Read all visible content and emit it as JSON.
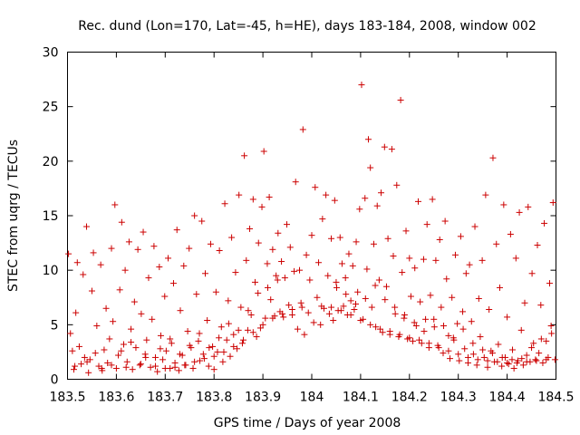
{
  "chart_data": {
    "type": "scatter",
    "title": "Rec. dund (Lon=170, Lat=-45, h=HE), days 183-184, 2008, window 002",
    "xlabel": "GPS time / Days of year 2008",
    "ylabel": "STEC from uqrg / TECUs",
    "xlim": [
      183.5,
      184.5
    ],
    "ylim": [
      0,
      30
    ],
    "xticks": [
      183.5,
      183.6,
      183.7,
      183.8,
      183.9,
      184.0,
      184.1,
      184.2,
      184.3,
      184.4,
      184.5
    ],
    "xtick_labels": [
      "183.5",
      "183.6",
      "183.7",
      "183.8",
      "183.9",
      "184",
      "184.1",
      "184.2",
      "184.3",
      "184.4",
      "184.5"
    ],
    "yticks": [
      0,
      5,
      10,
      15,
      20,
      25,
      30
    ],
    "ytick_labels": [
      "0",
      "5",
      "10",
      "15",
      "20",
      "25",
      "30"
    ],
    "grid": false,
    "legend": "none",
    "marker": "plus",
    "color": "#cc0000",
    "points": [
      [
        183.502,
        11.5
      ],
      [
        183.506,
        4.2
      ],
      [
        183.51,
        2.6
      ],
      [
        183.513,
        0.9
      ],
      [
        183.517,
        6.1
      ],
      [
        183.52,
        10.7
      ],
      [
        183.524,
        3.0
      ],
      [
        183.528,
        1.4
      ],
      [
        183.532,
        9.6
      ],
      [
        183.535,
        2.0
      ],
      [
        183.539,
        14.0
      ],
      [
        183.543,
        0.6
      ],
      [
        183.546,
        1.8
      ],
      [
        183.55,
        8.1
      ],
      [
        183.553,
        11.6
      ],
      [
        183.557,
        2.4
      ],
      [
        183.56,
        4.9
      ],
      [
        183.564,
        1.2
      ],
      [
        183.568,
        10.5
      ],
      [
        183.571,
        0.8
      ],
      [
        183.575,
        2.7
      ],
      [
        183.579,
        6.5
      ],
      [
        183.582,
        1.5
      ],
      [
        183.586,
        3.7
      ],
      [
        183.59,
        12.0
      ],
      [
        183.593,
        5.3
      ],
      [
        183.597,
        16.0
      ],
      [
        183.6,
        1.0
      ],
      [
        183.604,
        2.2
      ],
      [
        183.607,
        8.2
      ],
      [
        183.611,
        14.4
      ],
      [
        183.615,
        3.2
      ],
      [
        183.618,
        10.0
      ],
      [
        183.622,
        1.6
      ],
      [
        183.626,
        12.6
      ],
      [
        183.63,
        4.6
      ],
      [
        183.633,
        0.9
      ],
      [
        183.637,
        7.1
      ],
      [
        183.64,
        2.9
      ],
      [
        183.644,
        11.9
      ],
      [
        183.648,
        1.3
      ],
      [
        183.651,
        6.0
      ],
      [
        183.655,
        13.5
      ],
      [
        183.659,
        2.3
      ],
      [
        183.662,
        3.6
      ],
      [
        183.666,
        9.3
      ],
      [
        183.67,
        1.1
      ],
      [
        183.673,
        5.5
      ],
      [
        183.677,
        12.2
      ],
      [
        183.68,
        2.0
      ],
      [
        183.684,
        0.7
      ],
      [
        183.688,
        10.3
      ],
      [
        183.691,
        4.0
      ],
      [
        183.695,
        1.8
      ],
      [
        183.699,
        7.6
      ],
      [
        183.702,
        2.6
      ],
      [
        183.706,
        11.1
      ],
      [
        183.71,
        1.0
      ],
      [
        183.713,
        3.3
      ],
      [
        183.717,
        8.8
      ],
      [
        183.72,
        1.5
      ],
      [
        183.724,
        13.7
      ],
      [
        183.728,
        0.8
      ],
      [
        183.731,
        6.3
      ],
      [
        183.735,
        2.2
      ],
      [
        183.738,
        10.4
      ],
      [
        183.742,
        1.3
      ],
      [
        183.746,
        4.4
      ],
      [
        183.749,
        12.0
      ],
      [
        183.753,
        2.9
      ],
      [
        183.757,
        1.0
      ],
      [
        183.76,
        15.0
      ],
      [
        183.764,
        7.8
      ],
      [
        183.768,
        3.5
      ],
      [
        183.771,
        1.7
      ],
      [
        183.775,
        14.5
      ],
      [
        183.778,
        2.3
      ],
      [
        183.782,
        9.7
      ],
      [
        183.786,
        5.4
      ],
      [
        183.789,
        1.2
      ],
      [
        183.793,
        12.4
      ],
      [
        183.797,
        3.0
      ],
      [
        183.8,
        0.9
      ],
      [
        183.804,
        8.0
      ],
      [
        183.807,
        2.5
      ],
      [
        183.811,
        11.8
      ],
      [
        183.815,
        4.8
      ],
      [
        183.818,
        1.6
      ],
      [
        183.822,
        16.1
      ],
      [
        183.826,
        3.6
      ],
      [
        183.829,
        7.2
      ],
      [
        183.833,
        2.1
      ],
      [
        183.836,
        13.0
      ],
      [
        183.84,
        4.1
      ],
      [
        183.844,
        9.8
      ],
      [
        183.847,
        2.8
      ],
      [
        183.851,
        16.9
      ],
      [
        183.855,
        6.6
      ],
      [
        183.858,
        3.3
      ],
      [
        183.862,
        20.5
      ],
      [
        183.866,
        10.9
      ],
      [
        183.869,
        4.5
      ],
      [
        183.873,
        13.8
      ],
      [
        183.876,
        5.9
      ],
      [
        183.88,
        16.5
      ],
      [
        183.884,
        8.9
      ],
      [
        183.887,
        3.9
      ],
      [
        183.891,
        12.5
      ],
      [
        183.895,
        4.7
      ],
      [
        183.898,
        15.8
      ],
      [
        183.902,
        20.9
      ],
      [
        183.905,
        5.6
      ],
      [
        183.909,
        10.6
      ],
      [
        183.913,
        16.7
      ],
      [
        183.916,
        7.3
      ],
      [
        183.92,
        11.9
      ],
      [
        183.924,
        5.8
      ],
      [
        183.927,
        9.5
      ],
      [
        183.931,
        13.4
      ],
      [
        183.935,
        6.2
      ],
      [
        183.938,
        10.8
      ],
      [
        183.942,
        5.7
      ],
      [
        183.945,
        9.3
      ],
      [
        183.949,
        14.2
      ],
      [
        183.953,
        6.8
      ],
      [
        183.956,
        12.1
      ],
      [
        183.96,
        5.9
      ],
      [
        183.964,
        9.9
      ],
      [
        183.967,
        18.1
      ],
      [
        183.971,
        4.6
      ],
      [
        183.975,
        10.0
      ],
      [
        183.978,
        7.0
      ],
      [
        183.982,
        22.9
      ],
      [
        183.985,
        4.1
      ],
      [
        183.989,
        11.4
      ],
      [
        183.993,
        6.1
      ],
      [
        183.996,
        9.1
      ],
      [
        184.0,
        13.2
      ],
      [
        184.004,
        5.2
      ],
      [
        184.007,
        17.6
      ],
      [
        184.011,
        7.5
      ],
      [
        184.014,
        10.7
      ],
      [
        184.018,
        5.0
      ],
      [
        184.022,
        14.7
      ],
      [
        184.025,
        6.5
      ],
      [
        184.029,
        16.9
      ],
      [
        184.033,
        9.5
      ],
      [
        184.036,
        6.0
      ],
      [
        184.04,
        12.9
      ],
      [
        184.044,
        5.4
      ],
      [
        184.047,
        16.4
      ],
      [
        184.051,
        8.4
      ],
      [
        184.054,
        6.3
      ],
      [
        184.058,
        13.0
      ],
      [
        184.062,
        10.6
      ],
      [
        184.065,
        6.7
      ],
      [
        184.069,
        9.3
      ],
      [
        184.073,
        5.9
      ],
      [
        184.076,
        11.5
      ],
      [
        184.08,
        7.2
      ],
      [
        184.084,
        10.4
      ],
      [
        184.087,
        6.4
      ],
      [
        184.091,
        12.6
      ],
      [
        184.094,
        8.0
      ],
      [
        184.098,
        15.6
      ],
      [
        184.102,
        27.0
      ],
      [
        184.105,
        5.5
      ],
      [
        184.109,
        16.6
      ],
      [
        184.113,
        10.1
      ],
      [
        184.116,
        22.0
      ],
      [
        184.12,
        19.4
      ],
      [
        184.123,
        6.6
      ],
      [
        184.127,
        12.4
      ],
      [
        184.131,
        4.8
      ],
      [
        184.134,
        15.9
      ],
      [
        184.138,
        9.1
      ],
      [
        184.142,
        17.1
      ],
      [
        184.145,
        4.3
      ],
      [
        184.149,
        21.3
      ],
      [
        184.153,
        8.5
      ],
      [
        184.156,
        12.9
      ],
      [
        184.16,
        4.1
      ],
      [
        184.164,
        21.1
      ],
      [
        184.167,
        11.3
      ],
      [
        184.171,
        6.0
      ],
      [
        184.174,
        17.8
      ],
      [
        184.178,
        3.9
      ],
      [
        184.182,
        25.6
      ],
      [
        184.185,
        9.8
      ],
      [
        184.189,
        5.6
      ],
      [
        184.193,
        13.6
      ],
      [
        184.196,
        3.7
      ],
      [
        184.2,
        11.1
      ],
      [
        184.203,
        7.6
      ],
      [
        184.207,
        3.5
      ],
      [
        184.211,
        10.2
      ],
      [
        184.214,
        4.9
      ],
      [
        184.218,
        16.3
      ],
      [
        184.222,
        7.1
      ],
      [
        184.225,
        3.3
      ],
      [
        184.229,
        11.0
      ],
      [
        184.233,
        5.5
      ],
      [
        184.236,
        14.2
      ],
      [
        184.24,
        2.9
      ],
      [
        184.243,
        7.7
      ],
      [
        184.247,
        16.5
      ],
      [
        184.251,
        4.8
      ],
      [
        184.254,
        10.9
      ],
      [
        184.258,
        3.1
      ],
      [
        184.262,
        12.8
      ],
      [
        184.265,
        6.6
      ],
      [
        184.269,
        2.4
      ],
      [
        184.273,
        14.5
      ],
      [
        184.276,
        9.2
      ],
      [
        184.28,
        4.0
      ],
      [
        184.283,
        1.9
      ],
      [
        184.287,
        7.5
      ],
      [
        184.291,
        3.6
      ],
      [
        184.294,
        11.4
      ],
      [
        184.298,
        5.1
      ],
      [
        184.302,
        1.7
      ],
      [
        184.305,
        13.1
      ],
      [
        184.309,
        6.2
      ],
      [
        184.313,
        2.8
      ],
      [
        184.316,
        9.7
      ],
      [
        184.32,
        1.5
      ],
      [
        184.323,
        10.5
      ],
      [
        184.327,
        5.3
      ],
      [
        184.331,
        2.3
      ],
      [
        184.334,
        14.0
      ],
      [
        184.338,
        1.3
      ],
      [
        184.342,
        7.4
      ],
      [
        184.345,
        3.9
      ],
      [
        184.349,
        10.9
      ],
      [
        184.353,
        2.0
      ],
      [
        184.356,
        16.9
      ],
      [
        184.36,
        1.1
      ],
      [
        184.363,
        6.4
      ],
      [
        184.367,
        2.6
      ],
      [
        184.371,
        20.3
      ],
      [
        184.374,
        1.6
      ],
      [
        184.378,
        12.4
      ],
      [
        184.382,
        3.2
      ],
      [
        184.385,
        8.4
      ],
      [
        184.389,
        1.2
      ],
      [
        184.393,
        16.0
      ],
      [
        184.396,
        2.0
      ],
      [
        184.4,
        5.7
      ],
      [
        184.403,
        1.4
      ],
      [
        184.407,
        13.3
      ],
      [
        184.411,
        2.7
      ],
      [
        184.414,
        1.0
      ],
      [
        184.418,
        11.1
      ],
      [
        184.422,
        1.7
      ],
      [
        184.425,
        15.3
      ],
      [
        184.429,
        4.5
      ],
      [
        184.433,
        1.3
      ],
      [
        184.436,
        7.0
      ],
      [
        184.44,
        2.2
      ],
      [
        184.443,
        15.8
      ],
      [
        184.447,
        1.6
      ],
      [
        184.451,
        9.7
      ],
      [
        184.454,
        3.3
      ],
      [
        184.458,
        1.8
      ],
      [
        184.462,
        12.3
      ],
      [
        184.465,
        2.4
      ],
      [
        184.469,
        6.8
      ],
      [
        184.473,
        1.5
      ],
      [
        184.476,
        14.3
      ],
      [
        184.48,
        3.5
      ],
      [
        184.484,
        2.0
      ],
      [
        184.487,
        8.8
      ],
      [
        184.491,
        4.2
      ],
      [
        184.494,
        16.2
      ],
      [
        184.498,
        1.8
      ],
      [
        183.515,
        1.2
      ],
      [
        183.54,
        1.6
      ],
      [
        183.57,
        1.0
      ],
      [
        183.59,
        1.3
      ],
      [
        183.62,
        1.1
      ],
      [
        183.65,
        1.4
      ],
      [
        183.68,
        1.2
      ],
      [
        183.7,
        1.0
      ],
      [
        183.72,
        1.1
      ],
      [
        183.74,
        1.3
      ],
      [
        183.76,
        1.6
      ],
      [
        183.78,
        1.9
      ],
      [
        183.8,
        2.1
      ],
      [
        183.82,
        2.5
      ],
      [
        183.84,
        3.0
      ],
      [
        183.86,
        3.6
      ],
      [
        183.88,
        4.3
      ],
      [
        183.9,
        5.0
      ],
      [
        183.92,
        5.6
      ],
      [
        183.94,
        6.0
      ],
      [
        183.96,
        6.4
      ],
      [
        183.98,
        6.6
      ],
      [
        184.02,
        6.7
      ],
      [
        184.04,
        6.6
      ],
      [
        184.06,
        6.3
      ],
      [
        184.08,
        5.9
      ],
      [
        184.1,
        5.4
      ],
      [
        184.12,
        5.0
      ],
      [
        184.14,
        4.6
      ],
      [
        184.16,
        4.4
      ],
      [
        184.18,
        4.1
      ],
      [
        184.2,
        3.8
      ],
      [
        184.22,
        3.6
      ],
      [
        184.24,
        3.3
      ],
      [
        184.26,
        2.9
      ],
      [
        184.28,
        2.6
      ],
      [
        184.3,
        2.3
      ],
      [
        184.32,
        2.0
      ],
      [
        184.34,
        1.8
      ],
      [
        184.36,
        1.7
      ],
      [
        184.38,
        1.6
      ],
      [
        184.4,
        1.5
      ],
      [
        184.42,
        1.5
      ],
      [
        184.44,
        1.6
      ],
      [
        184.46,
        1.7
      ],
      [
        184.48,
        1.8
      ],
      [
        183.61,
        2.6
      ],
      [
        183.63,
        3.4
      ],
      [
        183.66,
        2.0
      ],
      [
        183.69,
        2.8
      ],
      [
        183.71,
        3.7
      ],
      [
        183.73,
        2.3
      ],
      [
        183.75,
        3.1
      ],
      [
        183.77,
        4.2
      ],
      [
        183.79,
        2.9
      ],
      [
        183.81,
        3.8
      ],
      [
        183.83,
        5.1
      ],
      [
        183.85,
        4.5
      ],
      [
        183.87,
        6.3
      ],
      [
        183.89,
        7.9
      ],
      [
        183.91,
        8.4
      ],
      [
        183.93,
        9.1
      ],
      [
        184.05,
        8.9
      ],
      [
        184.07,
        7.8
      ],
      [
        184.09,
        6.9
      ],
      [
        184.11,
        7.4
      ],
      [
        184.13,
        8.6
      ],
      [
        184.15,
        7.3
      ],
      [
        184.17,
        6.6
      ],
      [
        184.19,
        5.9
      ],
      [
        184.21,
        5.2
      ],
      [
        184.23,
        4.4
      ],
      [
        184.25,
        5.5
      ],
      [
        184.27,
        4.9
      ],
      [
        184.29,
        3.8
      ],
      [
        184.31,
        4.6
      ],
      [
        184.33,
        3.3
      ],
      [
        184.35,
        2.7
      ],
      [
        184.37,
        2.4
      ],
      [
        184.39,
        2.0
      ],
      [
        184.41,
        1.8
      ],
      [
        184.43,
        1.9
      ],
      [
        184.45,
        2.9
      ],
      [
        184.47,
        3.7
      ],
      [
        184.49,
        4.9
      ]
    ]
  }
}
